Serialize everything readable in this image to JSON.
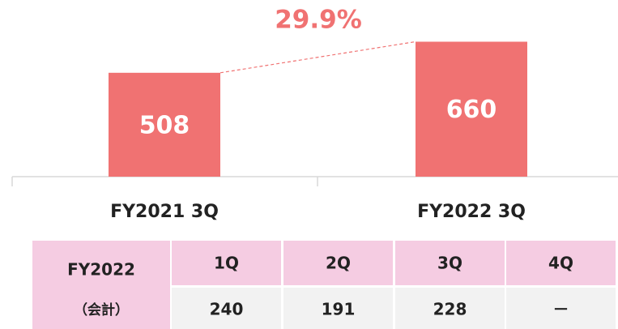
{
  "chart_data": {
    "type": "bar",
    "categories": [
      "FY2021 3Q",
      "FY2022 3Q"
    ],
    "values": [
      508,
      660
    ],
    "color": "#f07272",
    "ylim": [
      0,
      860
    ],
    "annotation": "29.9%"
  },
  "table": {
    "row_header": [
      "FY2022",
      "（会計）"
    ],
    "columns": [
      "1Q",
      "2Q",
      "3Q",
      "4Q"
    ],
    "values": [
      240,
      191,
      228,
      "－"
    ]
  }
}
